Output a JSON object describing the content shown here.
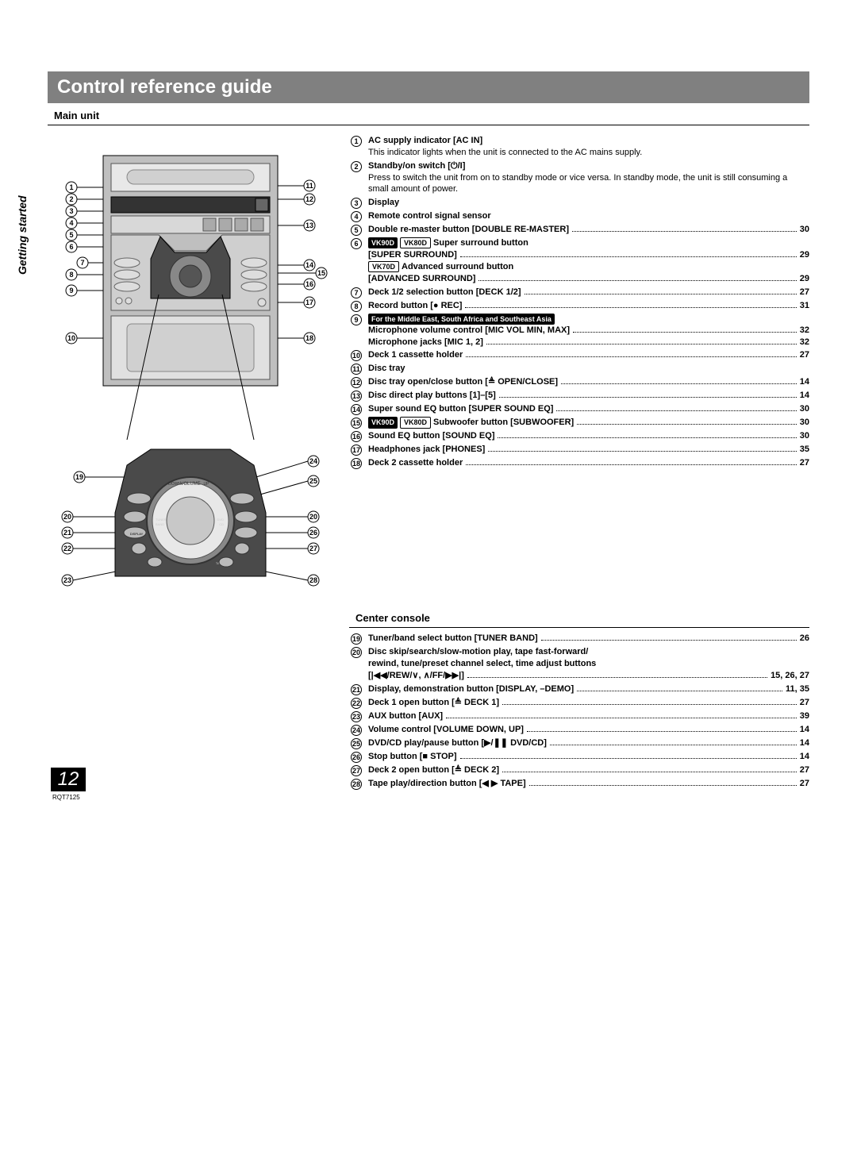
{
  "title": "Control reference guide",
  "spine_label": "Getting started",
  "page_number": "12",
  "doc_code": "RQT7125",
  "main_unit": {
    "header": "Main unit",
    "items": [
      {
        "num": "1",
        "bold": "AC supply indicator [AC IN]",
        "desc": "This indicator lights when the unit is connected to the AC mains supply."
      },
      {
        "num": "2",
        "bold": "Standby/on switch [⏻/I]",
        "desc": "Press to switch the unit from on to standby mode or vice versa. In standby mode, the unit is still consuming a small amount of power."
      },
      {
        "num": "3",
        "bold": "Display"
      },
      {
        "num": "4",
        "bold": "Remote control signal sensor"
      },
      {
        "num": "5",
        "bold": "Double re-master button [DOUBLE RE-MASTER]",
        "page": "30"
      },
      {
        "num": "6",
        "sublines": [
          {
            "badges": [
              {
                "t": "VK90D",
                "k": "b"
              },
              {
                "t": "VK80D",
                "k": "o"
              }
            ],
            "bold": " Super surround button"
          },
          {
            "bold": "[SUPER SURROUND]",
            "page": "29"
          },
          {
            "badges": [
              {
                "t": "VK70D",
                "k": "o"
              }
            ],
            "bold": " Advanced surround button"
          },
          {
            "bold": "[ADVANCED SURROUND]",
            "page": "29"
          }
        ]
      },
      {
        "num": "7",
        "bold": "Deck 1/2 selection button [DECK 1/2]",
        "page": "27"
      },
      {
        "num": "8",
        "bold": "Record button [● REC]",
        "page": "31"
      },
      {
        "num": "9",
        "sublines": [
          {
            "badges": [
              {
                "t": "For the Middle East, South Africa and Southeast Asia",
                "k": "b"
              }
            ]
          },
          {
            "bold": "Microphone volume control [MIC VOL MIN, MAX]",
            "page": "32"
          },
          {
            "bold": "Microphone jacks [MIC 1, 2]",
            "page": "32"
          }
        ]
      },
      {
        "num": "10",
        "bold": "Deck 1 cassette holder",
        "page": "27"
      },
      {
        "num": "11",
        "bold": "Disc tray"
      },
      {
        "num": "12",
        "bold": "Disc tray open/close button [≜ OPEN/CLOSE]",
        "page": "14"
      },
      {
        "num": "13",
        "bold": "Disc direct play buttons [1]–[5]",
        "page": "14"
      },
      {
        "num": "14",
        "bold": "Super sound EQ button [SUPER SOUND EQ]",
        "page": "30"
      },
      {
        "num": "15",
        "badges": [
          {
            "t": "VK90D",
            "k": "b"
          },
          {
            "t": "VK80D",
            "k": "o"
          }
        ],
        "bold": " Subwoofer button [SUBWOOFER]",
        "page": "30"
      },
      {
        "num": "16",
        "bold": "Sound EQ button [SOUND EQ]",
        "page": "30"
      },
      {
        "num": "17",
        "bold": "Headphones jack [PHONES]",
        "page": "35"
      },
      {
        "num": "18",
        "bold": "Deck 2 cassette holder",
        "page": "27"
      }
    ]
  },
  "center_console": {
    "header": "Center console",
    "items": [
      {
        "num": "19",
        "bold": "Tuner/band select button [TUNER BAND]",
        "page": "26"
      },
      {
        "num": "20",
        "sublines": [
          {
            "bold": "Disc skip/search/slow-motion play, tape fast-forward/",
            "wrap": true
          },
          {
            "bold": "rewind, tune/preset channel select, time adjust buttons",
            "wrap": true
          },
          {
            "bold": "[|◀◀/REW/∨, ∧/FF/▶▶|]",
            "page": "15, 26, 27"
          }
        ]
      },
      {
        "num": "21",
        "bold": "Display, demonstration button [DISPLAY, –DEMO]",
        "page": "11, 35"
      },
      {
        "num": "22",
        "bold": "Deck 1 open button [≜ DECK 1]",
        "page": "27"
      },
      {
        "num": "23",
        "bold": "AUX button [AUX]",
        "page": "39"
      },
      {
        "num": "24",
        "bold": "Volume control [VOLUME DOWN, UP]",
        "page": "14"
      },
      {
        "num": "25",
        "bold": "DVD/CD play/pause button [▶/❚❚ DVD/CD]",
        "page": "14"
      },
      {
        "num": "26",
        "bold": "Stop button [■ STOP]",
        "page": "14"
      },
      {
        "num": "27",
        "bold": "Deck 2 open button [≜ DECK 2]",
        "page": "27"
      },
      {
        "num": "28",
        "bold": "Tape play/direction button [◀ ▶ TAPE]",
        "page": "27"
      }
    ]
  },
  "colors": {
    "title_bg": "#808080",
    "text": "#000000",
    "bg": "#ffffff"
  }
}
